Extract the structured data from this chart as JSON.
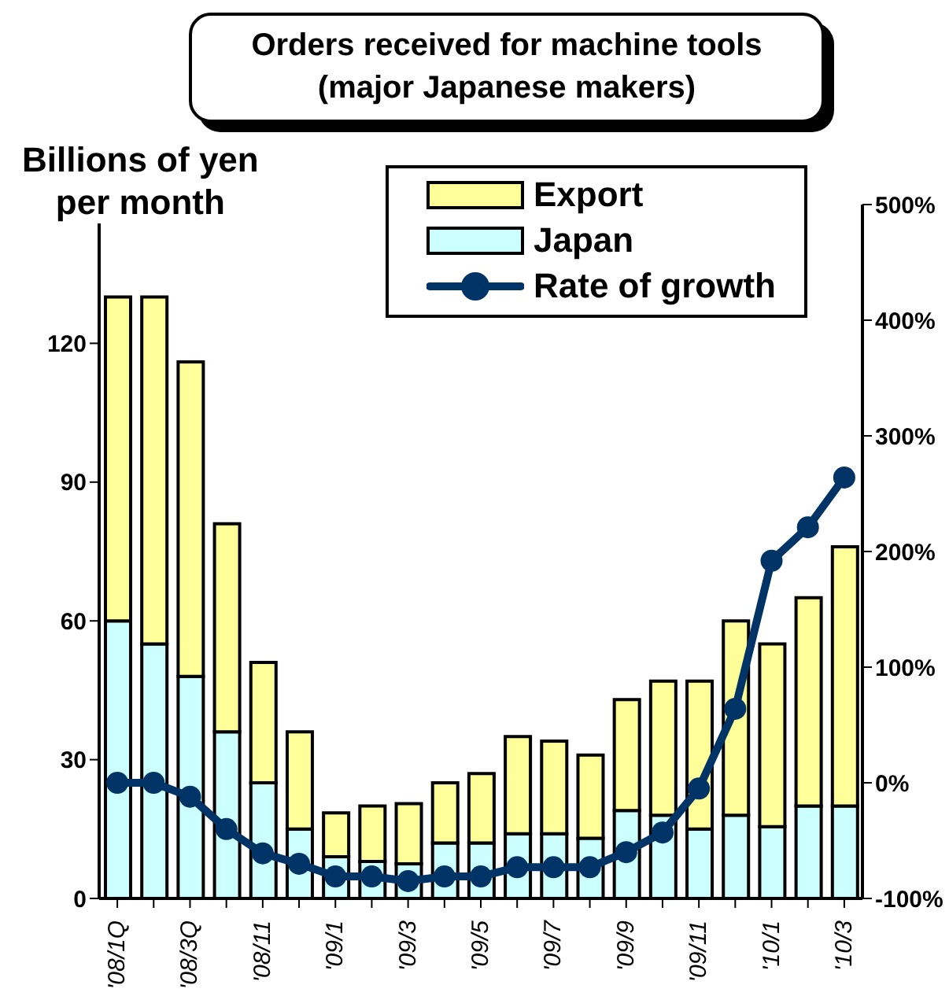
{
  "chart_data": {
    "type": "bar",
    "title": "Orders received for machine tools\n(major Japanese makers)",
    "ylabel": "Billions of yen\nper month",
    "categories": [
      "'08/1Q",
      null,
      "'08/3Q",
      null,
      "'08/11",
      null,
      "'09/1",
      null,
      "'09/3",
      null,
      "'09/5",
      null,
      "'09/7",
      null,
      "'09/9",
      null,
      "'09/11",
      null,
      "'10/1",
      null,
      "'10/3"
    ],
    "stacked": true,
    "series": [
      {
        "name": "Japan",
        "color": "#ccffff",
        "values": [
          60,
          55,
          48,
          36,
          25,
          15,
          9,
          8,
          7.5,
          12,
          12,
          14,
          14,
          13,
          19,
          18,
          15,
          18,
          15.5,
          20,
          20
        ]
      },
      {
        "name": "Export",
        "color": "#ffff99",
        "values": [
          70,
          75,
          68,
          45,
          26,
          21,
          9.5,
          12,
          13,
          13,
          15,
          21,
          20,
          18,
          24,
          29,
          32,
          42,
          39.5,
          45,
          56
        ]
      },
      {
        "name": "Rate of growth",
        "type": "line",
        "axis": "y2",
        "color": "#003366",
        "values": [
          0,
          0,
          -12,
          -40,
          -61,
          -70,
          -81,
          -81,
          -85,
          -81,
          -81,
          -73,
          -73,
          -73,
          -60,
          -43,
          -5,
          64,
          192,
          221,
          264
        ]
      }
    ],
    "ylim": [
      0,
      150
    ],
    "yticks": [
      0,
      30,
      60,
      90,
      120
    ],
    "y2lim": [
      -100,
      500
    ],
    "y2ticks": [
      {
        "value": -100,
        "label": "-100%"
      },
      {
        "value": 0,
        "label": "0%"
      },
      {
        "value": 100,
        "label": "100%"
      },
      {
        "value": 200,
        "label": "200%"
      },
      {
        "value": 300,
        "label": "300%"
      },
      {
        "value": 400,
        "label": "400%"
      },
      {
        "value": 500,
        "label": "500%"
      }
    ],
    "grid": false,
    "legend": "top right",
    "marker": "circle",
    "line_style": "solid"
  }
}
